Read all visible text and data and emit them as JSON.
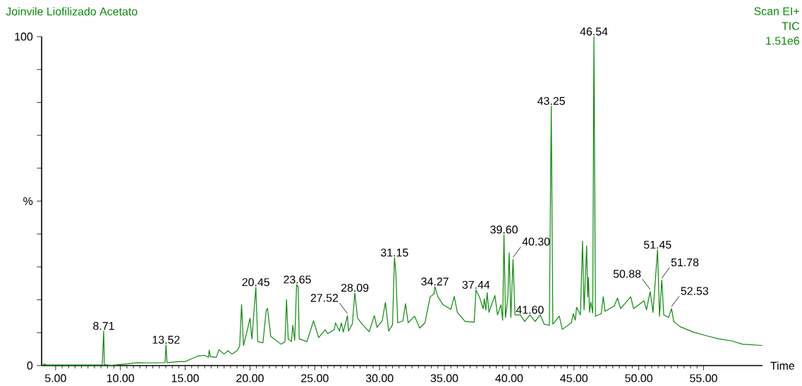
{
  "chart_data": {
    "type": "line",
    "title": "Joinvile Liofilizado Acetato",
    "xlabel": "Time",
    "x": [
      4.02,
      4.1,
      4.3,
      8.6,
      8.66,
      8.71,
      8.76,
      9.3,
      10.5,
      11.3,
      12.0,
      13.45,
      13.52,
      13.6,
      14.5,
      15.0,
      15.5,
      16.0,
      16.5,
      16.8,
      16.85,
      16.95,
      17.4,
      17.6,
      18.0,
      18.3,
      18.6,
      19.0,
      19.2,
      19.35,
      19.5,
      19.8,
      20.0,
      20.15,
      20.45,
      20.6,
      21.0,
      21.25,
      21.35,
      21.6,
      22.0,
      22.4,
      22.7,
      22.82,
      22.95,
      23.2,
      23.3,
      23.45,
      23.6,
      23.72,
      23.8,
      24.4,
      24.9,
      25.3,
      25.8,
      26.0,
      26.5,
      26.6,
      26.9,
      27.05,
      27.2,
      27.52,
      27.6,
      27.9,
      28.09,
      28.3,
      28.7,
      29.2,
      29.6,
      29.8,
      30.2,
      30.45,
      30.7,
      31.0,
      31.15,
      31.25,
      31.4,
      31.8,
      32.0,
      32.2,
      32.7,
      33.1,
      33.5,
      33.9,
      34.2,
      34.27,
      34.5,
      34.9,
      35.5,
      35.76,
      36.0,
      36.6,
      37.3,
      37.44,
      37.7,
      38.0,
      38.08,
      38.2,
      38.3,
      38.44,
      38.9,
      39.1,
      39.37,
      39.5,
      39.6,
      39.72,
      39.9,
      40.0,
      40.13,
      40.3,
      40.45,
      40.87,
      41.2,
      41.6,
      42.0,
      42.4,
      42.7,
      43.1,
      43.25,
      43.37,
      43.87,
      44.1,
      44.8,
      44.95,
      45.1,
      45.2,
      45.5,
      45.66,
      45.78,
      45.98,
      46.06,
      46.12,
      46.2,
      46.3,
      46.45,
      46.54,
      46.66,
      47.1,
      47.26,
      47.4,
      48.1,
      48.36,
      48.6,
      49.38,
      49.6,
      50.4,
      50.6,
      50.88,
      51.1,
      51.45,
      51.6,
      51.78,
      51.93,
      52.3,
      52.53,
      52.7,
      53.2,
      54.2,
      55.2,
      56.2,
      57.2,
      58.0,
      59.54
    ],
    "series": [
      {
        "color": "#0a8a0a",
        "values": [
          0.3,
          0.5,
          0.2,
          0.2,
          6,
          10.5,
          0.3,
          0.1,
          0.5,
          0.9,
          0.8,
          0.9,
          6.3,
          0.9,
          1.2,
          1.2,
          2.1,
          2.9,
          3.1,
          2.5,
          4.7,
          2.7,
          2.5,
          4.8,
          3.5,
          4.5,
          3.5,
          4.5,
          5.9,
          18.5,
          6.1,
          10.9,
          14.4,
          8.1,
          23.8,
          7.3,
          6.9,
          16.8,
          17.4,
          8.9,
          7.7,
          6.5,
          7.3,
          20.0,
          8.1,
          7.3,
          12.3,
          7.7,
          24.6,
          23.9,
          8.1,
          7.3,
          13.6,
          8.5,
          10.9,
          9.7,
          10.9,
          13.0,
          10.5,
          13.0,
          10.2,
          15.2,
          10.5,
          12.7,
          22.1,
          14.4,
          12.4,
          10.3,
          15.2,
          11.6,
          13.6,
          19.2,
          10.5,
          12.4,
          32.8,
          28.7,
          13.0,
          13.6,
          18.8,
          13.0,
          15.0,
          11.4,
          13.0,
          20.9,
          21.8,
          24.0,
          20.9,
          18.5,
          17.1,
          21.0,
          16.2,
          13.4,
          13.2,
          23.0,
          20.9,
          17.3,
          20.3,
          16.9,
          22.2,
          16.2,
          21.3,
          15.4,
          18.5,
          13.8,
          39.8,
          14.6,
          20.9,
          34.3,
          14.6,
          32.3,
          15.4,
          15.4,
          13.4,
          15.4,
          13.4,
          15.4,
          12.6,
          12.2,
          78.9,
          12.6,
          15.0,
          11.0,
          13.0,
          15.8,
          13.8,
          17.7,
          15.4,
          37.8,
          16.9,
          36.4,
          20.9,
          26.8,
          16.2,
          19.3,
          16.0,
          100,
          15.0,
          15.8,
          20.9,
          16.5,
          18.1,
          20.5,
          17.3,
          20.9,
          17.3,
          19.7,
          17.0,
          22.5,
          16.2,
          35.2,
          15.0,
          26.0,
          15.4,
          14.6,
          17.3,
          13.4,
          11.8,
          10.2,
          9.1,
          8.1,
          7.5,
          6.5,
          6.1
        ]
      }
    ],
    "xlim": [
      3.92,
      59.55
    ],
    "ylim": [
      0,
      100
    ],
    "xticks": [
      {
        "value": 5,
        "label": "5.00"
      },
      {
        "value": 10,
        "label": "10.00"
      },
      {
        "value": 15,
        "label": "15.00"
      },
      {
        "value": 20,
        "label": "20.00"
      },
      {
        "value": 25,
        "label": "25.00"
      },
      {
        "value": 30,
        "label": "30.00"
      },
      {
        "value": 35,
        "label": "35.00"
      },
      {
        "value": 40,
        "label": "40.00"
      },
      {
        "value": 45,
        "label": "45.00"
      },
      {
        "value": 50,
        "label": "50.00"
      },
      {
        "value": 55,
        "label": "55.00"
      }
    ],
    "yticks": [
      0,
      {
        "value": 10,
        "label": null
      },
      {
        "value": 20,
        "label": null
      },
      {
        "value": 30,
        "label": null
      },
      {
        "value": 40,
        "label": null
      },
      {
        "value": 50,
        "label": "%"
      },
      {
        "value": 60,
        "label": null
      },
      {
        "value": 70,
        "label": null
      },
      {
        "value": 80,
        "label": null
      },
      {
        "value": 90,
        "label": null
      },
      100
    ],
    "annotations": [
      "Scan EI+",
      "TIC",
      "1.51e6",
      {
        "text": "8.71",
        "x": 8.71,
        "y": 10.5
      },
      {
        "text": "13.52",
        "x": 13.52,
        "y": 6.3
      },
      {
        "text": "20.45",
        "x": 20.45,
        "y": 23.8
      },
      {
        "text": "23.65",
        "x": 23.65,
        "y": 24.6
      },
      {
        "text": "27.52",
        "x": 27.52,
        "y": 15.2
      },
      {
        "text": "28.09",
        "x": 28.09,
        "y": 22.1
      },
      {
        "text": "31.15",
        "x": 31.15,
        "y": 32.8
      },
      {
        "text": "34.27",
        "x": 34.27,
        "y": 24.0
      },
      {
        "text": "37.44",
        "x": 37.44,
        "y": 23.0
      },
      {
        "text": "39.60",
        "x": 39.6,
        "y": 39.8
      },
      {
        "text": "40.30",
        "x": 40.3,
        "y": 32.3
      },
      {
        "text": "41.60",
        "x": 41.6,
        "y": 15.4
      },
      {
        "text": "43.25",
        "x": 43.25,
        "y": 78.9
      },
      {
        "text": "46.54",
        "x": 46.54,
        "y": 100
      },
      {
        "text": "50.88",
        "x": 50.88,
        "y": 22.5
      },
      {
        "text": "51.45",
        "x": 51.45,
        "y": 35.2
      },
      {
        "text": "51.78",
        "x": 51.78,
        "y": 26.0
      },
      {
        "text": "52.53",
        "x": 52.53,
        "y": 17.3
      }
    ]
  }
}
